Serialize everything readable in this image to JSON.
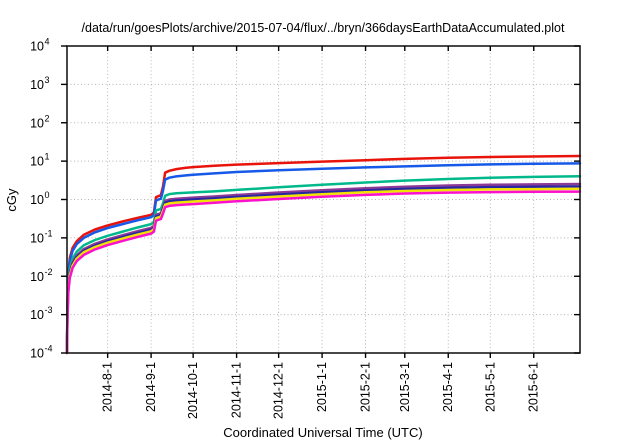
{
  "chart": {
    "title": "/data/run/goesPlots/archive/2015-07-04/flux/../bryn/366daysEarthDataAccumulated.plot",
    "ylabel": "cGy",
    "xlabel": "Coordinated Universal Time (UTC)"
  },
  "chart_data": {
    "type": "line",
    "title": "/data/run/goesPlots/archive/2015-07-04/flux/../bryn/366daysEarthDataAccumulated.plot",
    "xlabel": "Coordinated Universal Time (UTC)",
    "ylabel": "cGy",
    "y_scale": "log10",
    "ylim": [
      0.0001,
      10000
    ],
    "y_tick_exponents": [
      4,
      3,
      2,
      1,
      0,
      -1,
      -2,
      -3,
      -4
    ],
    "x_axis_days": [
      0,
      366
    ],
    "x_ticks": [
      {
        "label": "2014-8-1",
        "day": 29
      },
      {
        "label": "2014-9-1",
        "day": 60
      },
      {
        "label": "2014-10-1",
        "day": 90
      },
      {
        "label": "2014-11-1",
        "day": 121
      },
      {
        "label": "2014-12-1",
        "day": 151
      },
      {
        "label": "2015-1-1",
        "day": 182
      },
      {
        "label": "2015-2-1",
        "day": 213
      },
      {
        "label": "2015-3-1",
        "day": 241
      },
      {
        "label": "2015-4-1",
        "day": 272
      },
      {
        "label": "2015-5-1",
        "day": 302
      },
      {
        "label": "2015-6-1",
        "day": 333
      }
    ],
    "grid": true,
    "legend": "none",
    "background": "#ffffff",
    "grid_color": "#b3b3b3",
    "border_color": "#1a1a1a",
    "line_width": 2.5,
    "series": [
      {
        "name": "red",
        "color": "#e8140c",
        "points": [
          [
            0,
            0.0001
          ],
          [
            0.3,
            0.002
          ],
          [
            1,
            0.012
          ],
          [
            2,
            0.03
          ],
          [
            4,
            0.055
          ],
          [
            7,
            0.082
          ],
          [
            12,
            0.12
          ],
          [
            20,
            0.165
          ],
          [
            29,
            0.21
          ],
          [
            40,
            0.27
          ],
          [
            50,
            0.33
          ],
          [
            60,
            0.4
          ],
          [
            62,
            0.46
          ],
          [
            63.5,
            1.15
          ],
          [
            67,
            1.3
          ],
          [
            68.5,
            2.2
          ],
          [
            70,
            5.0
          ],
          [
            73,
            5.6
          ],
          [
            78,
            6.2
          ],
          [
            85,
            6.7
          ],
          [
            90,
            7.0
          ],
          [
            105,
            7.6
          ],
          [
            121,
            8.1
          ],
          [
            151,
            8.9
          ],
          [
            182,
            9.7
          ],
          [
            213,
            10.6
          ],
          [
            241,
            11.4
          ],
          [
            272,
            12.2
          ],
          [
            302,
            12.8
          ],
          [
            333,
            13.2
          ],
          [
            366,
            13.6
          ]
        ]
      },
      {
        "name": "blue",
        "color": "#1659e8",
        "points": [
          [
            0,
            0.0001
          ],
          [
            0.3,
            0.0017
          ],
          [
            1,
            0.01
          ],
          [
            2,
            0.025
          ],
          [
            4,
            0.046
          ],
          [
            7,
            0.069
          ],
          [
            12,
            0.1
          ],
          [
            20,
            0.14
          ],
          [
            29,
            0.18
          ],
          [
            40,
            0.23
          ],
          [
            50,
            0.285
          ],
          [
            60,
            0.345
          ],
          [
            62,
            0.4
          ],
          [
            63.5,
            0.95
          ],
          [
            67,
            1.05
          ],
          [
            68.5,
            1.7
          ],
          [
            70,
            3.3
          ],
          [
            73,
            3.7
          ],
          [
            78,
            4.0
          ],
          [
            85,
            4.25
          ],
          [
            90,
            4.4
          ],
          [
            105,
            4.8
          ],
          [
            121,
            5.2
          ],
          [
            151,
            5.75
          ],
          [
            182,
            6.3
          ],
          [
            213,
            6.85
          ],
          [
            241,
            7.3
          ],
          [
            272,
            7.8
          ],
          [
            302,
            8.2
          ],
          [
            333,
            8.5
          ],
          [
            366,
            8.75
          ]
        ]
      },
      {
        "name": "spring-green",
        "color": "#00b98a",
        "points": [
          [
            0,
            0.0001
          ],
          [
            0.3,
            0.0012
          ],
          [
            1,
            0.007
          ],
          [
            2,
            0.016
          ],
          [
            4,
            0.029
          ],
          [
            7,
            0.044
          ],
          [
            12,
            0.064
          ],
          [
            20,
            0.088
          ],
          [
            29,
            0.113
          ],
          [
            40,
            0.147
          ],
          [
            50,
            0.185
          ],
          [
            60,
            0.228
          ],
          [
            62,
            0.26
          ],
          [
            63.5,
            0.52
          ],
          [
            67,
            0.57
          ],
          [
            68.5,
            0.8
          ],
          [
            70,
            1.25
          ],
          [
            73,
            1.38
          ],
          [
            78,
            1.45
          ],
          [
            85,
            1.5
          ],
          [
            90,
            1.53
          ],
          [
            105,
            1.63
          ],
          [
            121,
            1.78
          ],
          [
            151,
            2.08
          ],
          [
            182,
            2.42
          ],
          [
            213,
            2.78
          ],
          [
            241,
            3.1
          ],
          [
            272,
            3.42
          ],
          [
            302,
            3.68
          ],
          [
            333,
            3.88
          ],
          [
            366,
            4.05
          ]
        ]
      },
      {
        "name": "purple",
        "color": "#8d3a96",
        "points": [
          [
            0,
            0.0001
          ],
          [
            0.3,
            0.001
          ],
          [
            1,
            0.0055
          ],
          [
            2,
            0.0125
          ],
          [
            4,
            0.023
          ],
          [
            7,
            0.035
          ],
          [
            12,
            0.051
          ],
          [
            20,
            0.07
          ],
          [
            29,
            0.091
          ],
          [
            40,
            0.118
          ],
          [
            50,
            0.148
          ],
          [
            60,
            0.182
          ],
          [
            62,
            0.205
          ],
          [
            63.5,
            0.4
          ],
          [
            67,
            0.44
          ],
          [
            68.5,
            0.62
          ],
          [
            70,
            0.92
          ],
          [
            73,
            1.0
          ],
          [
            78,
            1.05
          ],
          [
            85,
            1.09
          ],
          [
            90,
            1.12
          ],
          [
            105,
            1.2
          ],
          [
            121,
            1.31
          ],
          [
            151,
            1.52
          ],
          [
            182,
            1.74
          ],
          [
            213,
            1.97
          ],
          [
            241,
            2.16
          ],
          [
            272,
            2.32
          ],
          [
            302,
            2.42
          ],
          [
            333,
            2.48
          ],
          [
            366,
            2.53
          ]
        ]
      },
      {
        "name": "navy",
        "color": "#2727a3",
        "points": [
          [
            0,
            0.0001
          ],
          [
            0.3,
            0.0009
          ],
          [
            1,
            0.005
          ],
          [
            2,
            0.0115
          ],
          [
            4,
            0.021
          ],
          [
            7,
            0.032
          ],
          [
            12,
            0.046
          ],
          [
            20,
            0.063
          ],
          [
            29,
            0.082
          ],
          [
            40,
            0.106
          ],
          [
            50,
            0.133
          ],
          [
            60,
            0.163
          ],
          [
            62,
            0.185
          ],
          [
            63.5,
            0.36
          ],
          [
            67,
            0.4
          ],
          [
            68.5,
            0.56
          ],
          [
            70,
            0.82
          ],
          [
            73,
            0.89
          ],
          [
            78,
            0.94
          ],
          [
            85,
            0.97
          ],
          [
            90,
            1.0
          ],
          [
            105,
            1.07
          ],
          [
            121,
            1.17
          ],
          [
            151,
            1.35
          ],
          [
            182,
            1.54
          ],
          [
            213,
            1.73
          ],
          [
            241,
            1.89
          ],
          [
            272,
            2.02
          ],
          [
            302,
            2.1
          ],
          [
            333,
            2.15
          ],
          [
            366,
            2.18
          ]
        ]
      },
      {
        "name": "yellow",
        "color": "#f2e203",
        "points": [
          [
            0,
            0.0001
          ],
          [
            0.3,
            0.0008
          ],
          [
            1,
            0.0045
          ],
          [
            2,
            0.0105
          ],
          [
            4,
            0.019
          ],
          [
            7,
            0.029
          ],
          [
            12,
            0.042
          ],
          [
            20,
            0.058
          ],
          [
            29,
            0.075
          ],
          [
            40,
            0.097
          ],
          [
            50,
            0.121
          ],
          [
            60,
            0.148
          ],
          [
            62,
            0.168
          ],
          [
            63.5,
            0.325
          ],
          [
            67,
            0.36
          ],
          [
            68.5,
            0.5
          ],
          [
            70,
            0.73
          ],
          [
            73,
            0.79
          ],
          [
            78,
            0.83
          ],
          [
            85,
            0.86
          ],
          [
            90,
            0.885
          ],
          [
            105,
            0.95
          ],
          [
            121,
            1.04
          ],
          [
            151,
            1.2
          ],
          [
            182,
            1.37
          ],
          [
            213,
            1.54
          ],
          [
            241,
            1.67
          ],
          [
            272,
            1.77
          ],
          [
            302,
            1.83
          ],
          [
            333,
            1.87
          ],
          [
            366,
            1.9
          ]
        ]
      },
      {
        "name": "magenta",
        "color": "#fb10cc",
        "points": [
          [
            0,
            0.0001
          ],
          [
            0.3,
            0.0007
          ],
          [
            1,
            0.004
          ],
          [
            2,
            0.009
          ],
          [
            4,
            0.0165
          ],
          [
            7,
            0.025
          ],
          [
            12,
            0.036
          ],
          [
            20,
            0.05
          ],
          [
            29,
            0.065
          ],
          [
            40,
            0.084
          ],
          [
            50,
            0.105
          ],
          [
            60,
            0.129
          ],
          [
            62,
            0.146
          ],
          [
            63.5,
            0.28
          ],
          [
            67,
            0.31
          ],
          [
            68.5,
            0.43
          ],
          [
            70,
            0.63
          ],
          [
            73,
            0.68
          ],
          [
            78,
            0.715
          ],
          [
            85,
            0.74
          ],
          [
            90,
            0.76
          ],
          [
            105,
            0.82
          ],
          [
            121,
            0.9
          ],
          [
            151,
            1.03
          ],
          [
            182,
            1.18
          ],
          [
            213,
            1.32
          ],
          [
            241,
            1.43
          ],
          [
            272,
            1.51
          ],
          [
            302,
            1.56
          ],
          [
            333,
            1.59
          ],
          [
            366,
            1.61
          ]
        ]
      }
    ]
  }
}
